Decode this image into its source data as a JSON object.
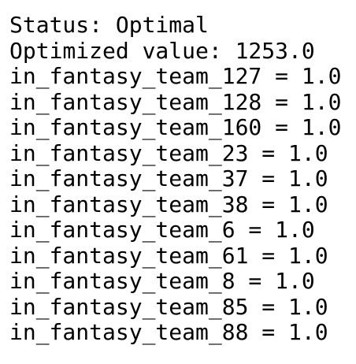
{
  "lines": [
    "Status: Optimal",
    "Optimized value: 1253.0",
    "in_fantasy_team_127 = 1.0",
    "in_fantasy_team_128 = 1.0",
    "in_fantasy_team_160 = 1.0",
    "in_fantasy_team_23 = 1.0",
    "in_fantasy_team_37 = 1.0",
    "in_fantasy_team_38 = 1.0",
    "in_fantasy_team_6 = 1.0",
    "in_fantasy_team_61 = 1.0",
    "in_fantasy_team_8 = 1.0",
    "in_fantasy_team_85 = 1.0",
    "in_fantasy_team_88 = 1.0"
  ]
}
